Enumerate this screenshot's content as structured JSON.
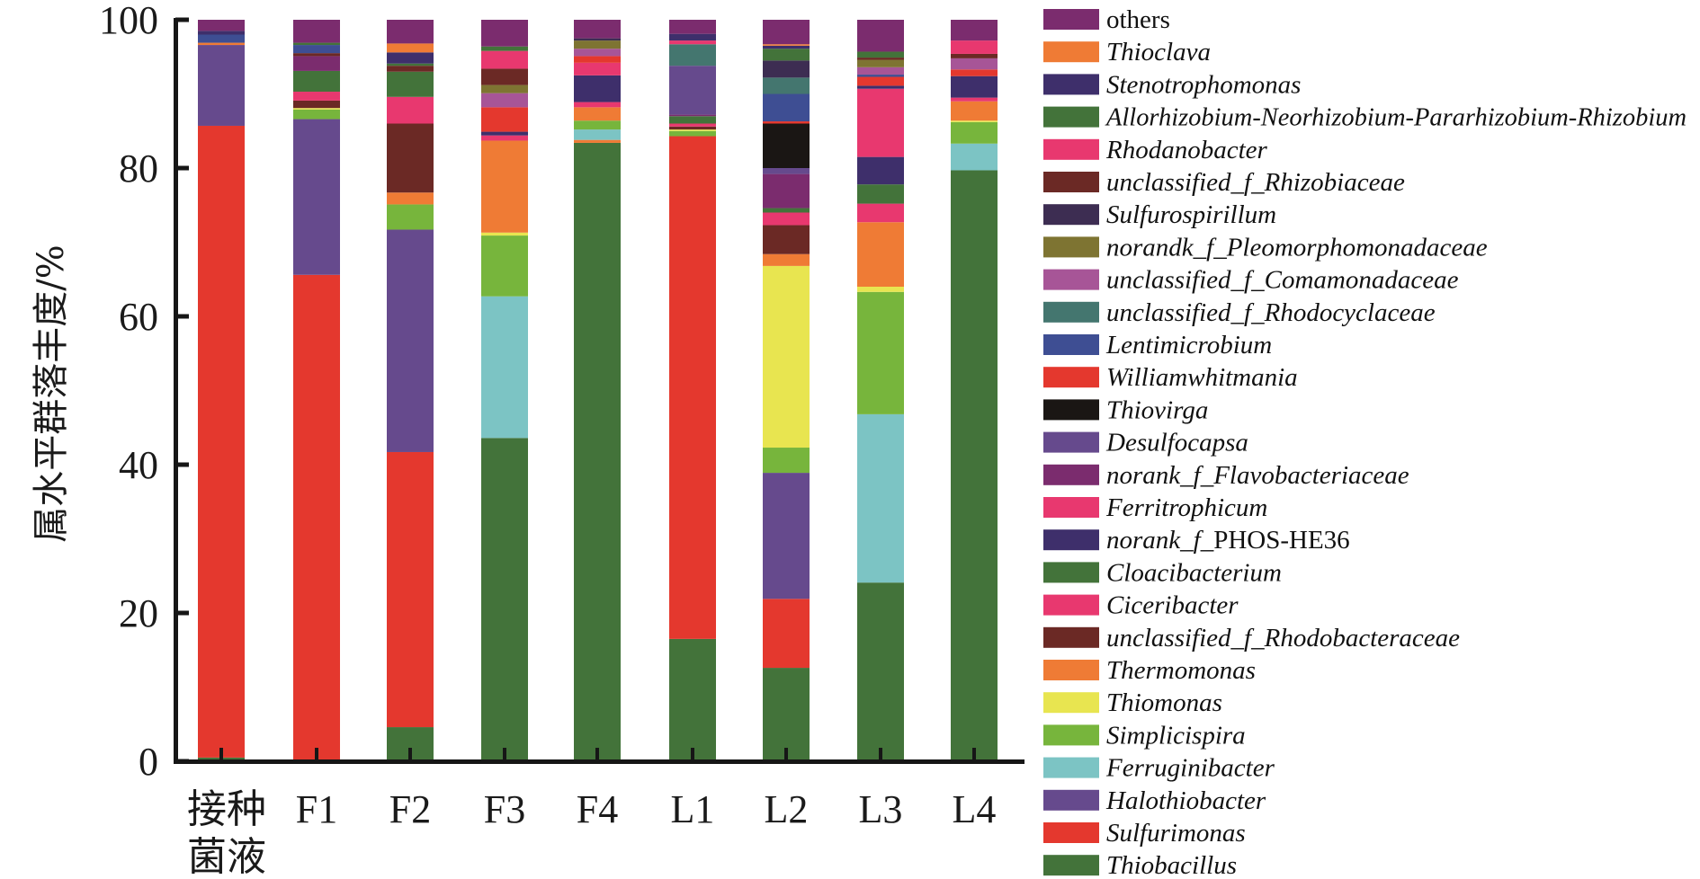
{
  "chart_data": {
    "type": "bar",
    "stacked": true,
    "title": "",
    "xlabel": "",
    "ylabel": "属水平群落丰度/%",
    "ylim": [
      0,
      100
    ],
    "yticks": [
      "0",
      "20",
      "40",
      "60",
      "80",
      "100"
    ],
    "grid": false,
    "legend_position": "right",
    "categories": [
      {
        "line1": "接种",
        "line2": "菌液"
      },
      {
        "line1": "F1",
        "line2": ""
      },
      {
        "line1": "F2",
        "line2": ""
      },
      {
        "line1": "F3",
        "line2": ""
      },
      {
        "line1": "F4",
        "line2": ""
      },
      {
        "line1": "L1",
        "line2": ""
      },
      {
        "line1": "L2",
        "line2": ""
      },
      {
        "line1": "L3",
        "line2": ""
      },
      {
        "line1": "L4",
        "line2": ""
      }
    ],
    "legend": [
      {
        "key": "others",
        "label": "others",
        "color": "#7B2C6E",
        "italic": false
      },
      {
        "key": "Thioclava",
        "label": "Thioclava",
        "color": "#EF7B35",
        "italic": true
      },
      {
        "key": "Stenotrophomonas",
        "label": "Stenotrophomonas",
        "color": "#3E2F6B",
        "italic": true
      },
      {
        "key": "Allorhizobium",
        "label": "Allorhizobium-Neorhizobium-Pararhizobium-Rhizobium",
        "color": "#43733A",
        "italic": true
      },
      {
        "key": "Rhodanobacter",
        "label": "Rhodanobacter",
        "color": "#E8386F",
        "italic": true
      },
      {
        "key": "Rhizobiaceae",
        "label": "unclassified_f_Rhizobiaceae",
        "color": "#6B2925",
        "italic": true
      },
      {
        "key": "Sulfurospirillum",
        "label": "Sulfurospirillum",
        "color": "#3D2D52",
        "italic": true
      },
      {
        "key": "Pleomorphomonadaceae",
        "label": "norandk_f_Pleomorphomonadaceae",
        "color": "#7E7432",
        "italic": true
      },
      {
        "key": "Comamonadaceae",
        "label": "unclassified_f_Comamonadaceae",
        "color": "#A75597",
        "italic": true
      },
      {
        "key": "Rhodocyclaceae",
        "label": "unclassified_f_Rhodocyclaceae",
        "color": "#44766F",
        "italic": true
      },
      {
        "key": "Lentimicrobium",
        "label": "Lentimicrobium",
        "color": "#3E4E93",
        "italic": true
      },
      {
        "key": "Williamwhitmania",
        "label": "Williamwhitmania",
        "color": "#E4382E",
        "italic": true
      },
      {
        "key": "Thiovirga",
        "label": "Thiovirga",
        "color": "#1A1614",
        "italic": true
      },
      {
        "key": "Desulfocapsa",
        "label": "Desulfocapsa",
        "color": "#664A8D",
        "italic": true
      },
      {
        "key": "Flavobacteriaceae",
        "label": "norank_f_Flavobacteriaceae",
        "color": "#7B2C6E",
        "italic": true
      },
      {
        "key": "Ferritrophicum",
        "label": "Ferritrophicum",
        "color": "#E8386F",
        "italic": true
      },
      {
        "key": "PHOS",
        "label": "norank_f_PHOS-HE36",
        "label_italic_part": "norank_f_",
        "label_upright_part": "PHOS-HE36",
        "color": "#3E2F6B",
        "italic": true
      },
      {
        "key": "Cloacibacterium",
        "label": "Cloacibacterium",
        "color": "#43733A",
        "italic": true
      },
      {
        "key": "Ciceribacter",
        "label": "Ciceribacter",
        "color": "#E8386F",
        "italic": true
      },
      {
        "key": "Rhodobacteraceae",
        "label": "unclassified_f_Rhodobacteraceae",
        "color": "#6B2925",
        "italic": true
      },
      {
        "key": "Thermomonas",
        "label": "Thermomonas",
        "color": "#EF7B35",
        "italic": true
      },
      {
        "key": "Thiomonas",
        "label": "Thiomonas",
        "color": "#E8E550",
        "italic": true
      },
      {
        "key": "Simplicispira",
        "label": "Simplicispira",
        "color": "#77B53C",
        "italic": true
      },
      {
        "key": "Ferruginibacter",
        "label": "Ferruginibacter",
        "color": "#7CC4C4",
        "italic": true
      },
      {
        "key": "Halothiobacter",
        "label": "Halothiobacter",
        "color": "#664A8D",
        "italic": true
      },
      {
        "key": "Sulfurimonas",
        "label": "Sulfurimonas",
        "color": "#E4382E",
        "italic": true
      },
      {
        "key": "Thiobacillus",
        "label": "Thiobacillus",
        "color": "#43733A",
        "italic": true
      }
    ],
    "stacks": [
      [
        [
          "Thiobacillus",
          0.5
        ],
        [
          "Sulfurimonas",
          85.2
        ],
        [
          "Halothiobacter",
          10.9
        ],
        [
          "Thermomonas",
          0.3
        ],
        [
          "Lentimicrobium",
          1.1
        ],
        [
          "Stenotrophomonas",
          0.5
        ],
        [
          "others",
          1.5
        ]
      ],
      [
        [
          "Sulfurimonas",
          65.6
        ],
        [
          "Halothiobacter",
          21.0
        ],
        [
          "Simplicispira",
          1.3
        ],
        [
          "Thiomonas",
          0.2
        ],
        [
          "Rhodobacteraceae",
          1.0
        ],
        [
          "Ciceribacter",
          1.2
        ],
        [
          "Cloacibacterium",
          2.8
        ],
        [
          "Flavobacteriaceae",
          2.0
        ],
        [
          "Rhizobiaceae",
          0.4
        ],
        [
          "Lentimicrobium",
          1.1
        ],
        [
          "Allorhizobium",
          0.3
        ],
        [
          "others",
          3.1
        ]
      ],
      [
        [
          "Thiobacillus",
          4.6
        ],
        [
          "Sulfurimonas",
          37.1
        ],
        [
          "Halothiobacter",
          30.0
        ],
        [
          "Simplicispira",
          3.4
        ],
        [
          "Thermomonas",
          1.6
        ],
        [
          "Rhodobacteraceae",
          9.3
        ],
        [
          "Ciceribacter",
          3.6
        ],
        [
          "Cloacibacterium",
          3.4
        ],
        [
          "Rhizobiaceae",
          0.8
        ],
        [
          "Allorhizobium",
          0.3
        ],
        [
          "Stenotrophomonas",
          1.5
        ],
        [
          "Thioclava",
          1.2
        ],
        [
          "others",
          3.2
        ]
      ],
      [
        [
          "Thiobacillus",
          43.6
        ],
        [
          "Ferruginibacter",
          19.1
        ],
        [
          "Simplicispira",
          8.2
        ],
        [
          "Thiomonas",
          0.4
        ],
        [
          "Thermomonas",
          12.4
        ],
        [
          "Ciceribacter",
          0.7
        ],
        [
          "PHOS",
          0.5
        ],
        [
          "Williamwhitmania",
          3.3
        ],
        [
          "Comamonadaceae",
          1.9
        ],
        [
          "Pleomorphomonadaceae",
          1.1
        ],
        [
          "Rhizobiaceae",
          2.2
        ],
        [
          "Rhodanobacter",
          2.4
        ],
        [
          "Allorhizobium",
          0.6
        ],
        [
          "others",
          3.6
        ]
      ],
      [
        [
          "Thiobacillus",
          83.4
        ],
        [
          "Thermomonas",
          0.4
        ],
        [
          "Ferruginibacter",
          1.4
        ],
        [
          "Simplicispira",
          1.2
        ],
        [
          "Thermomonas",
          1.8
        ],
        [
          "Ciceribacter",
          0.7
        ],
        [
          "PHOS",
          3.6
        ],
        [
          "Rhodanobacter",
          1.7
        ],
        [
          "Williamwhitmania",
          0.9
        ],
        [
          "Comamonadaceae",
          1.0
        ],
        [
          "Pleomorphomonadaceae",
          1.1
        ],
        [
          "Sulfurospirillum",
          0.3
        ],
        [
          "others",
          2.5
        ]
      ],
      [
        [
          "Thiobacillus",
          16.5
        ],
        [
          "Sulfurimonas",
          67.8
        ],
        [
          "Simplicispira",
          0.7
        ],
        [
          "Thiomonas",
          0.2
        ],
        [
          "Rhodobacteraceae",
          0.4
        ],
        [
          "Ciceribacter",
          0.4
        ],
        [
          "Cloacibacterium",
          1.0
        ],
        [
          "Flavobacteriaceae",
          0.2
        ],
        [
          "Desulfocapsa",
          6.6
        ],
        [
          "Rhodocyclaceae",
          2.9
        ],
        [
          "Ferritrophicum",
          0.5
        ],
        [
          "Stenotrophomonas",
          0.9
        ],
        [
          "others",
          1.9
        ]
      ],
      [
        [
          "Thiobacillus",
          12.6
        ],
        [
          "Sulfurimonas",
          9.3
        ],
        [
          "Halothiobacter",
          17.0
        ],
        [
          "Simplicispira",
          3.4
        ],
        [
          "Thiomonas",
          24.5
        ],
        [
          "Thermomonas",
          1.6
        ],
        [
          "Rhodobacteraceae",
          3.9
        ],
        [
          "Ciceribacter",
          1.7
        ],
        [
          "Cloacibacterium",
          0.6
        ],
        [
          "Flavobacteriaceae",
          4.6
        ],
        [
          "Desulfocapsa",
          0.8
        ],
        [
          "Thiovirga",
          6.0
        ],
        [
          "Williamwhitmania",
          0.3
        ],
        [
          "Lentimicrobium",
          3.7
        ],
        [
          "Rhodocyclaceae",
          2.2
        ],
        [
          "Sulfurospirillum",
          2.3
        ],
        [
          "Allorhizobium",
          1.6
        ],
        [
          "Stenotrophomonas",
          0.4
        ],
        [
          "Thioclava",
          0.2
        ],
        [
          "others",
          3.3
        ]
      ],
      [
        [
          "Thiobacillus",
          24.1
        ],
        [
          "Ferruginibacter",
          22.7
        ],
        [
          "Simplicispira",
          16.5
        ],
        [
          "Thiomonas",
          0.7
        ],
        [
          "Thermomonas",
          8.7
        ],
        [
          "Ciceribacter",
          2.5
        ],
        [
          "Cloacibacterium",
          2.6
        ],
        [
          "PHOS",
          3.7
        ],
        [
          "Ferritrophicum",
          9.2
        ],
        [
          "Stenotrophomonas",
          0.4
        ],
        [
          "Williamwhitmania",
          1.2
        ],
        [
          "Lentimicrobium",
          0.3
        ],
        [
          "Comamonadaceae",
          1.0
        ],
        [
          "Pleomorphomonadaceae",
          1.0
        ],
        [
          "Rhizobiaceae",
          0.3
        ],
        [
          "Allorhizobium",
          0.8
        ],
        [
          "others",
          4.3
        ]
      ],
      [
        [
          "Thiobacillus",
          79.7
        ],
        [
          "Ferruginibacter",
          3.6
        ],
        [
          "Simplicispira",
          2.9
        ],
        [
          "Thiomonas",
          0.2
        ],
        [
          "Thermomonas",
          2.6
        ],
        [
          "Ciceribacter",
          0.5
        ],
        [
          "PHOS",
          2.9
        ],
        [
          "Williamwhitmania",
          0.9
        ],
        [
          "Comamonadaceae",
          1.5
        ],
        [
          "Rhizobiaceae",
          0.6
        ],
        [
          "Rhodanobacter",
          1.8
        ],
        [
          "others",
          2.8
        ]
      ]
    ]
  }
}
